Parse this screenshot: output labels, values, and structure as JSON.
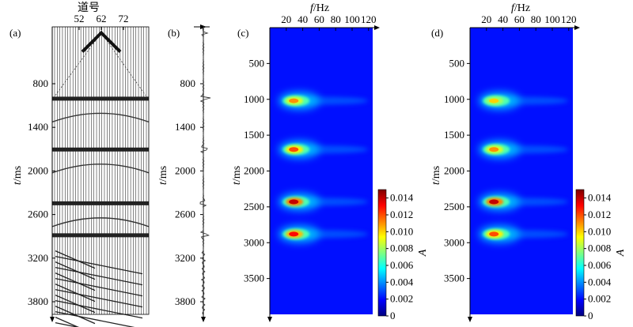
{
  "chart_data": [
    {
      "type": "other",
      "panel_label": "(a)",
      "top_axis_title": "道号",
      "top_ticks": [
        "52",
        "62",
        "72"
      ],
      "ylabel_var": "t",
      "ylabel_unit": "/ms",
      "y_ticks": [
        "800",
        "1400",
        "2000",
        "2600",
        "3200",
        "3800"
      ],
      "reflection_times": [
        1000,
        1700,
        2440,
        2880
      ],
      "direct_wave_peak_time": 100
    },
    {
      "type": "line",
      "panel_label": "(b)",
      "ylabel_var": "t",
      "ylabel_unit": "/ms",
      "y_ticks": [
        "800",
        "1400",
        "2000",
        "2600",
        "3200",
        "3800"
      ],
      "events": [
        {
          "t": 100,
          "amp": 0.5
        },
        {
          "t": 1000,
          "amp": 1.0
        },
        {
          "t": 1700,
          "amp": 0.8
        },
        {
          "t": 2440,
          "amp": -0.7
        },
        {
          "t": 2880,
          "amp": 0.9
        }
      ]
    },
    {
      "type": "heatmap",
      "panel_label": "(c)",
      "xlabel_var": "f",
      "xlabel_unit": "/Hz",
      "x_ticks": [
        "20",
        "40",
        "60",
        "80",
        "100",
        "120"
      ],
      "xlim": [
        0,
        125
      ],
      "ylabel_var": "t",
      "ylabel_unit": "/ms",
      "y_ticks": [
        "500",
        "1000",
        "1500",
        "2000",
        "2500",
        "3000",
        "3500"
      ],
      "ylim": [
        0,
        4000
      ],
      "blobs": [
        {
          "t": 1020,
          "f": 30,
          "A": 0.011
        },
        {
          "t": 1700,
          "f": 30,
          "A": 0.012
        },
        {
          "t": 2430,
          "f": 30,
          "A": 0.014
        },
        {
          "t": 2880,
          "f": 30,
          "A": 0.013
        }
      ],
      "colorbar": {
        "label": "A",
        "ticks": [
          "0",
          "0.002",
          "0.004",
          "0.006",
          "0.008",
          "0.010",
          "0.012",
          "0.014"
        ],
        "range": [
          0,
          0.015
        ]
      }
    },
    {
      "type": "heatmap",
      "panel_label": "(d)",
      "xlabel_var": "f",
      "xlabel_unit": "/Hz",
      "x_ticks": [
        "20",
        "40",
        "60",
        "80",
        "100",
        "120"
      ],
      "xlim": [
        0,
        125
      ],
      "ylabel_var": "t",
      "ylabel_unit": "/ms",
      "y_ticks": [
        "500",
        "1000",
        "1500",
        "2000",
        "2500",
        "3000",
        "3500"
      ],
      "ylim": [
        0,
        4000
      ],
      "blobs": [
        {
          "t": 1020,
          "f": 30,
          "A": 0.01
        },
        {
          "t": 1700,
          "f": 30,
          "A": 0.011
        },
        {
          "t": 2430,
          "f": 30,
          "A": 0.014
        },
        {
          "t": 2880,
          "f": 30,
          "A": 0.012
        }
      ],
      "colorbar": {
        "label": "A",
        "ticks": [
          "0",
          "0.002",
          "0.004",
          "0.006",
          "0.008",
          "0.010",
          "0.012",
          "0.014"
        ],
        "range": [
          0,
          0.015
        ]
      }
    }
  ]
}
